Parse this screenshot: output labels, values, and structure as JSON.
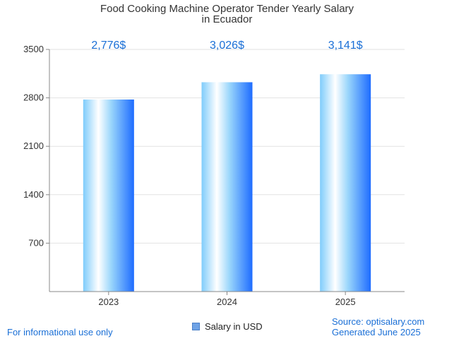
{
  "chart_data": {
    "type": "bar",
    "title_lines": [
      "Food Cooking Machine Operator Tender Yearly Salary",
      "in Ecuador"
    ],
    "categories": [
      "2023",
      "2024",
      "2025"
    ],
    "series": [
      {
        "name": "Salary in USD",
        "values": [
          2776,
          3026,
          3141
        ],
        "labels": [
          "2,776$",
          "3,026$",
          "3,141$"
        ]
      }
    ],
    "ylim": [
      0,
      3500
    ],
    "yticks": [
      "700",
      "1400",
      "2100",
      "2800",
      "3500"
    ],
    "grid": true,
    "legend_position": "bottom-center",
    "colors": {
      "bar_light": "#ffffff",
      "bar_mid": "#8fd4fb",
      "bar_dark": "#1e6cff",
      "value_label": "#1a6fd6"
    }
  },
  "footer": {
    "left_note": "For informational use only",
    "source": "Source: optisalary.com",
    "generated": "Generated June 2025"
  }
}
